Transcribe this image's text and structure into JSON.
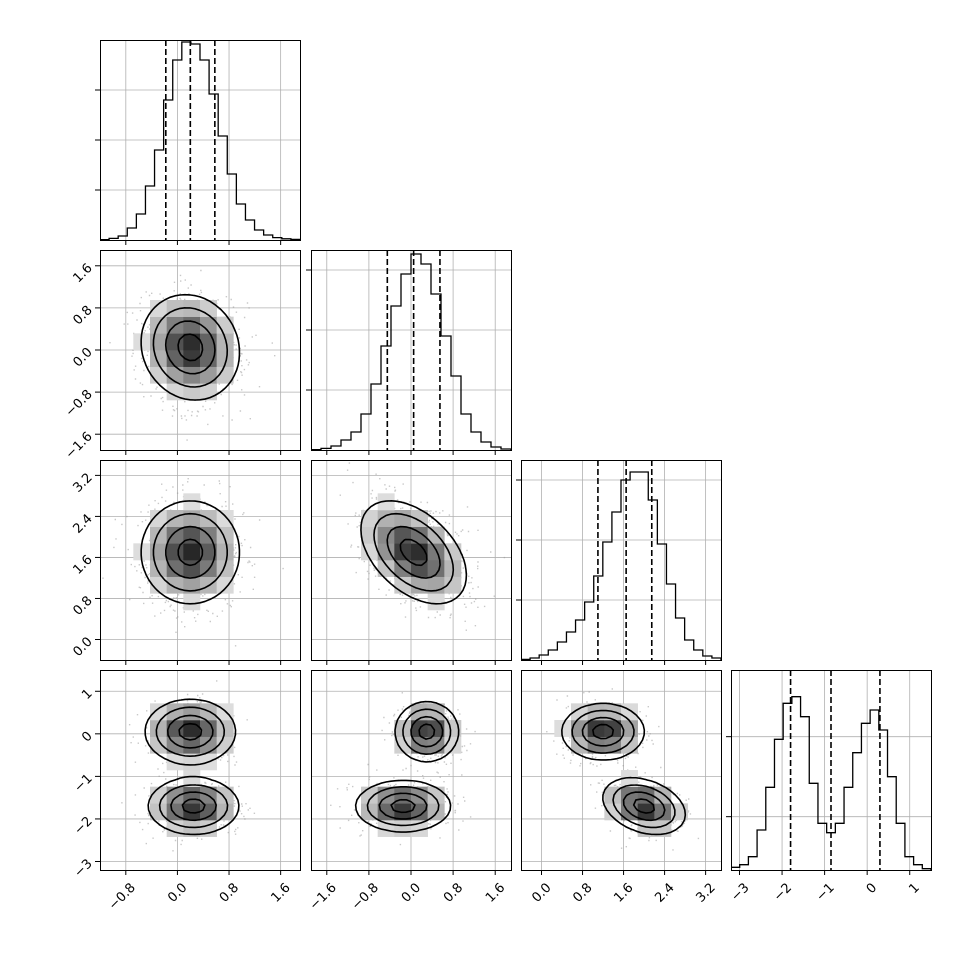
{
  "chart_data": {
    "type": "corner",
    "grid": true,
    "parameters": [
      {
        "range": [
          -1.2,
          1.9
        ],
        "ticks": [
          -0.8,
          0.0,
          0.8,
          1.6
        ],
        "tick_labels": [
          "−0.8",
          "0.0",
          "0.8",
          "1.6"
        ],
        "quantiles": [
          -0.18,
          0.2,
          0.58
        ],
        "hist_ylim": [
          0,
          1
        ],
        "hist_ticks": [
          0.25,
          0.5,
          0.75
        ],
        "hist": [
          0.002,
          0.008,
          0.02,
          0.06,
          0.13,
          0.27,
          0.45,
          0.7,
          0.9,
          0.99,
          0.98,
          0.9,
          0.73,
          0.52,
          0.33,
          0.18,
          0.1,
          0.05,
          0.025,
          0.012,
          0.006,
          0.003
        ]
      },
      {
        "range": [
          -1.9,
          1.9
        ],
        "ticks": [
          -1.6,
          -0.8,
          0.0,
          0.8,
          1.6
        ],
        "tick_labels": [
          "−1.6",
          "−0.8",
          "0.0",
          "0.8",
          "1.6"
        ],
        "quantiles": [
          -0.45,
          0.05,
          0.55
        ],
        "hist_ylim": [
          0,
          1
        ],
        "hist_ticks": [
          0.3,
          0.6,
          0.9
        ],
        "hist": [
          0.002,
          0.008,
          0.02,
          0.05,
          0.09,
          0.18,
          0.33,
          0.52,
          0.72,
          0.88,
          0.98,
          0.93,
          0.78,
          0.57,
          0.37,
          0.18,
          0.09,
          0.04,
          0.015,
          0.005
        ]
      },
      {
        "range": [
          -0.4,
          3.5
        ],
        "ticks": [
          0.0,
          0.8,
          1.6,
          2.4,
          3.2
        ],
        "tick_labels": [
          "0.0",
          "0.8",
          "1.6",
          "2.4",
          "3.2"
        ],
        "quantiles": [
          1.1,
          1.65,
          2.15
        ],
        "hist_ylim": [
          0,
          1
        ],
        "hist_ticks": [
          0.3,
          0.6,
          0.9
        ],
        "hist": [
          0.003,
          0.01,
          0.025,
          0.05,
          0.09,
          0.14,
          0.2,
          0.29,
          0.42,
          0.59,
          0.74,
          0.9,
          0.94,
          0.94,
          0.8,
          0.58,
          0.38,
          0.21,
          0.1,
          0.05,
          0.02,
          0.01
        ]
      },
      {
        "range": [
          -3.2,
          1.5
        ],
        "ticks": [
          -3,
          -2,
          -1,
          0,
          1
        ],
        "tick_labels": [
          "−3",
          "−2",
          "−1",
          "0",
          "1"
        ],
        "quantiles": [
          -1.8,
          -0.85,
          0.3
        ],
        "hist_ylim": [
          0,
          1.5
        ],
        "hist_ticks": [
          0.4,
          1.0
        ],
        "hist": [
          0.02,
          0.04,
          0.1,
          0.3,
          0.62,
          0.98,
          1.25,
          1.3,
          1.15,
          0.65,
          0.35,
          0.28,
          0.35,
          0.62,
          0.88,
          1.1,
          1.2,
          1.05,
          0.7,
          0.35,
          0.1,
          0.04,
          0.01
        ]
      }
    ],
    "pairs": [
      {
        "row": 1,
        "col": 0,
        "components": [
          {
            "mx": 0.2,
            "my": 0.05,
            "sx": 0.38,
            "sy": 0.5,
            "rho": -0.1,
            "w": 1
          }
        ]
      },
      {
        "row": 2,
        "col": 0,
        "components": [
          {
            "mx": 0.2,
            "my": 1.7,
            "sx": 0.38,
            "sy": 0.5,
            "rho": 0.0,
            "w": 1
          }
        ]
      },
      {
        "row": 2,
        "col": 1,
        "components": [
          {
            "mx": 0.05,
            "my": 1.7,
            "sx": 0.5,
            "sy": 0.5,
            "rho": -0.45,
            "w": 1
          }
        ]
      },
      {
        "row": 3,
        "col": 0,
        "components": [
          {
            "mx": 0.2,
            "my": 0.05,
            "sx": 0.35,
            "sy": 0.38,
            "rho": 0.0,
            "w": 0.5
          },
          {
            "mx": 0.25,
            "my": -1.7,
            "sx": 0.35,
            "sy": 0.33,
            "rho": 0.0,
            "w": 0.5
          }
        ]
      },
      {
        "row": 3,
        "col": 1,
        "components": [
          {
            "mx": 0.3,
            "my": 0.05,
            "sx": 0.3,
            "sy": 0.35,
            "rho": 0.0,
            "w": 0.5
          },
          {
            "mx": -0.15,
            "my": -1.7,
            "sx": 0.45,
            "sy": 0.3,
            "rho": 0.0,
            "w": 0.5
          }
        ]
      },
      {
        "row": 3,
        "col": 2,
        "components": [
          {
            "mx": 1.2,
            "my": 0.05,
            "sx": 0.4,
            "sy": 0.33,
            "rho": 0.0,
            "w": 0.5
          },
          {
            "mx": 2.0,
            "my": -1.7,
            "sx": 0.4,
            "sy": 0.33,
            "rho": -0.3,
            "w": 0.5
          }
        ]
      }
    ],
    "contour_levels": [
      "0.5σ",
      "1σ",
      "1.5σ",
      "2σ"
    ]
  }
}
